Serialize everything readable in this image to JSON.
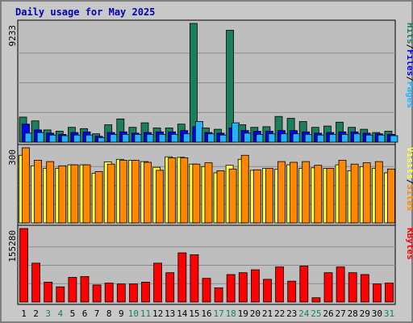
{
  "title": "Daily usage for May 2025",
  "colors": {
    "background": "#c8c8c8",
    "plot": "#bebebe",
    "title": "#0000b4",
    "hits": "#1b7f5c",
    "files": "#0000ff",
    "pages": "#22b4ff",
    "visits": "#ffff44",
    "sites": "#ff8800",
    "kbytes": "#ff0000",
    "weekend_label": "#1b7f5c"
  },
  "chart_data": [
    {
      "type": "bar",
      "panel": "hits-files-pages",
      "axis_max_label": "9233",
      "ylim": [
        0,
        9233
      ],
      "grid": true,
      "legend": [
        {
          "label": "Pages",
          "color": "#22b4ff"
        },
        {
          "label": "Files",
          "color": "#0000ff"
        },
        {
          "label": "Hits",
          "color": "#1b7f5c"
        }
      ],
      "categories": [
        "1",
        "2",
        "3",
        "4",
        "5",
        "6",
        "7",
        "8",
        "9",
        "10",
        "11",
        "12",
        "13",
        "14",
        "15",
        "16",
        "17",
        "18",
        "19",
        "20",
        "21",
        "22",
        "23",
        "24",
        "25",
        "26",
        "27",
        "28",
        "29",
        "30",
        "31"
      ],
      "series": [
        {
          "name": "Hits",
          "values": [
            1950,
            1650,
            950,
            850,
            1150,
            1050,
            650,
            1350,
            1800,
            1150,
            1500,
            1100,
            1100,
            1400,
            9233,
            1100,
            1000,
            8700,
            1350,
            1150,
            1200,
            2000,
            1850,
            1600,
            1150,
            1250,
            1550,
            1150,
            1000,
            750,
            850
          ]
        },
        {
          "name": "Files",
          "values": [
            1400,
            950,
            700,
            600,
            750,
            800,
            450,
            750,
            800,
            700,
            750,
            800,
            800,
            900,
            1200,
            750,
            700,
            1100,
            900,
            850,
            850,
            900,
            900,
            800,
            700,
            750,
            800,
            800,
            700,
            650,
            600
          ]
        },
        {
          "name": "Pages",
          "values": [
            700,
            750,
            550,
            500,
            550,
            550,
            350,
            600,
            600,
            600,
            600,
            600,
            600,
            650,
            1600,
            650,
            550,
            1500,
            700,
            600,
            650,
            650,
            650,
            600,
            550,
            600,
            600,
            650,
            550,
            550,
            500
          ]
        }
      ]
    },
    {
      "type": "bar",
      "panel": "visits-sites",
      "axis_max_label": "300",
      "ylim": [
        0,
        300
      ],
      "grid": true,
      "legend": [
        {
          "label": "Sites",
          "color": "#ff8800"
        },
        {
          "label": "Visits",
          "color": "#ffff44"
        }
      ],
      "categories": [
        "1",
        "2",
        "3",
        "4",
        "5",
        "6",
        "7",
        "8",
        "9",
        "10",
        "11",
        "12",
        "13",
        "14",
        "15",
        "16",
        "17",
        "18",
        "19",
        "20",
        "21",
        "22",
        "23",
        "24",
        "25",
        "26",
        "27",
        "28",
        "29",
        "30",
        "31"
      ],
      "series": [
        {
          "name": "Visits",
          "values": [
            270,
            228,
            218,
            218,
            232,
            232,
            198,
            244,
            254,
            250,
            245,
            222,
            264,
            262,
            235,
            225,
            200,
            230,
            254,
            210,
            218,
            214,
            232,
            218,
            220,
            218,
            232,
            208,
            225,
            218,
            200
          ]
        },
        {
          "name": "Sites",
          "values": [
            300,
            250,
            245,
            228,
            232,
            232,
            205,
            235,
            250,
            250,
            242,
            210,
            260,
            260,
            235,
            240,
            208,
            215,
            270,
            212,
            218,
            245,
            242,
            245,
            230,
            218,
            250,
            235,
            240,
            245,
            215
          ]
        }
      ]
    },
    {
      "type": "bar",
      "panel": "kbytes",
      "axis_max_label": "155280",
      "ylim": [
        0,
        155280
      ],
      "grid": true,
      "legend": [
        {
          "label": "KBytes",
          "color": "#ff0000"
        }
      ],
      "categories": [
        "1",
        "2",
        "3",
        "4",
        "5",
        "6",
        "7",
        "8",
        "9",
        "10",
        "11",
        "12",
        "13",
        "14",
        "15",
        "16",
        "17",
        "18",
        "19",
        "20",
        "21",
        "22",
        "23",
        "24",
        "25",
        "26",
        "27",
        "28",
        "29",
        "30",
        "31"
      ],
      "series": [
        {
          "name": "KBytes",
          "values": [
            155280,
            82000,
            42000,
            32000,
            52000,
            54000,
            36000,
            40000,
            38000,
            38000,
            42000,
            82000,
            62000,
            104000,
            100000,
            50000,
            30000,
            58000,
            62000,
            68000,
            48000,
            74000,
            44000,
            76000,
            9000,
            62000,
            74000,
            62000,
            58000,
            38000,
            40000
          ]
        }
      ]
    }
  ],
  "weekend_days": [
    "3",
    "4",
    "10",
    "11",
    "17",
    "18",
    "24",
    "25",
    "31"
  ]
}
